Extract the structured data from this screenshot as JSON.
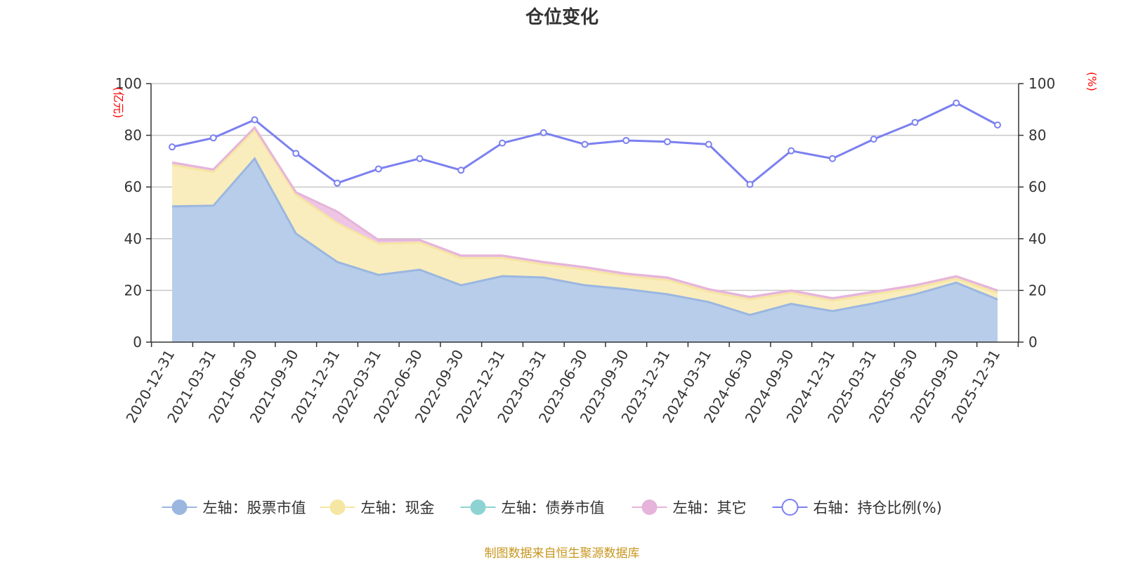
{
  "chart_data": {
    "type": "area",
    "title": "仓位变化",
    "source_text": "制图数据来自恒生聚源数据库",
    "left_axis": {
      "unit": "(亿元)",
      "min": 0,
      "max": 100,
      "ticks": [
        "0",
        "20",
        "40",
        "60",
        "80",
        "100"
      ]
    },
    "right_axis": {
      "unit": "(%)",
      "min": 0,
      "max": 100,
      "ticks": [
        "0",
        "20",
        "40",
        "60",
        "80",
        "100"
      ]
    },
    "categories": [
      "2020-12-31",
      "2021-03-31",
      "2021-06-30",
      "2021-09-30",
      "2021-12-31",
      "2022-03-31",
      "2022-06-30",
      "2022-09-30",
      "2022-12-31",
      "2023-03-31",
      "2023-06-30",
      "2023-09-30",
      "2023-12-31",
      "2024-03-31",
      "2024-06-30",
      "2024-09-30",
      "2024-12-31",
      "2025-03-31",
      "2025-06-30",
      "2025-09-30",
      "2025-12-31"
    ],
    "series": [
      {
        "name": "左轴：股票市值",
        "axis": "left",
        "stack": true,
        "color": "#9bb7e0",
        "fill": "#b7cdea",
        "values": [
          52.5,
          52.8,
          71.0,
          42.0,
          31.0,
          26.0,
          28.0,
          22.0,
          25.5,
          25.0,
          22.0,
          20.5,
          18.5,
          15.5,
          10.5,
          14.8,
          12.0,
          15.0,
          18.5,
          23.0,
          16.5
        ]
      },
      {
        "name": "左轴：现金",
        "axis": "left",
        "stack": true,
        "color": "#f5e6a3",
        "fill": "#faedbd",
        "values": [
          16.0,
          13.0,
          11.0,
          15.0,
          15.0,
          12.0,
          10.5,
          10.5,
          7.0,
          5.0,
          6.0,
          5.0,
          5.5,
          4.0,
          6.0,
          4.2,
          4.0,
          3.5,
          2.5,
          1.5,
          2.5
        ]
      },
      {
        "name": "左轴：债券市值",
        "axis": "left",
        "stack": true,
        "color": "#8ed3d3",
        "fill": "#a8dede",
        "values": [
          0,
          0,
          0,
          0,
          0,
          0,
          0,
          0,
          0,
          0,
          0,
          0,
          0,
          0,
          0,
          0,
          0,
          0,
          0,
          0,
          0
        ]
      },
      {
        "name": "左轴：其它",
        "axis": "left",
        "stack": true,
        "color": "#e6b4da",
        "fill": "#eec6e4",
        "values": [
          1.0,
          1.0,
          1.0,
          1.0,
          4.5,
          1.5,
          1.0,
          1.0,
          1.0,
          1.0,
          1.0,
          1.0,
          1.0,
          1.0,
          1.0,
          1.0,
          1.0,
          1.0,
          1.0,
          1.0,
          1.0
        ]
      },
      {
        "name": "右轴：持仓比例(%)",
        "axis": "right",
        "stack": false,
        "color": "#7b80ef",
        "values": [
          75.5,
          79.0,
          86.0,
          73.0,
          61.5,
          67.0,
          71.0,
          66.5,
          77.0,
          81.0,
          76.5,
          78.0,
          77.5,
          76.5,
          61.0,
          74.0,
          71.0,
          78.5,
          85.0,
          92.5,
          84.0
        ]
      }
    ],
    "legend_position": "bottom-center",
    "grid": true
  }
}
